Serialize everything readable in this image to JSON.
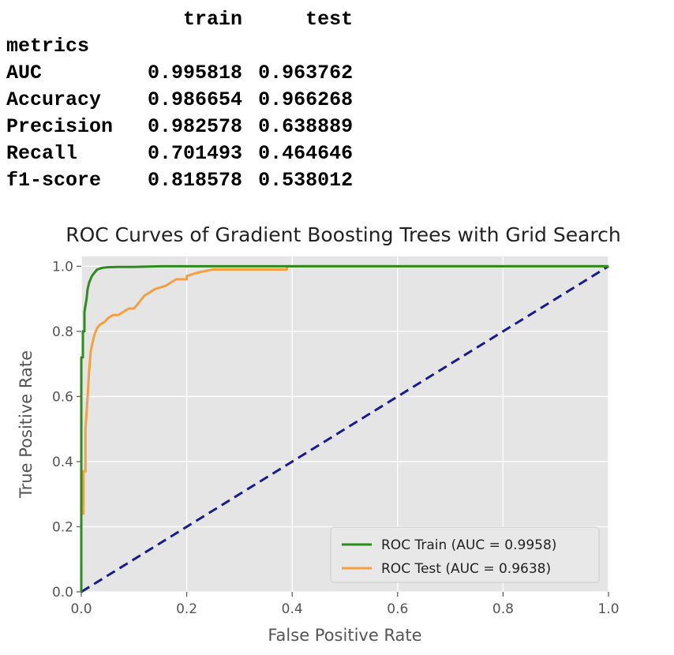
{
  "metrics_table": {
    "index_label": "metrics",
    "columns": [
      "train",
      "test"
    ],
    "rows": [
      {
        "metric": "AUC",
        "train": "0.995818",
        "test": "0.963762"
      },
      {
        "metric": "Accuracy",
        "train": "0.986654",
        "test": "0.966268"
      },
      {
        "metric": "Precision",
        "train": "0.982578",
        "test": "0.638889"
      },
      {
        "metric": "Recall",
        "train": "0.701493",
        "test": "0.464646"
      },
      {
        "metric": "f1-score",
        "train": "0.818578",
        "test": "0.538012"
      }
    ]
  },
  "chart_data": {
    "type": "line",
    "title": "ROC Curves of Gradient Boosting Trees with Grid Search",
    "xlabel": "False Positive Rate",
    "ylabel": "True Positive Rate",
    "xlim": [
      0,
      1
    ],
    "ylim": [
      0,
      1.03
    ],
    "xticks": [
      0.0,
      0.2,
      0.4,
      0.6,
      0.8,
      1.0
    ],
    "xtick_labels": [
      "0.0",
      "0.2",
      "0.4",
      "0.6",
      "0.8",
      "1.0"
    ],
    "yticks": [
      0.0,
      0.2,
      0.4,
      0.6,
      0.8,
      1.0
    ],
    "ytick_labels": [
      "0.0",
      "0.2",
      "0.4",
      "0.6",
      "0.8",
      "1.0"
    ],
    "grid": true,
    "legend_position": "lower-right",
    "series": [
      {
        "name": "ROC Train (AUC = 0.9958)",
        "color": "#2e8b1e",
        "style": "solid",
        "x": [
          0,
          0,
          0.003,
          0.003,
          0.006,
          0.006,
          0.01,
          0.012,
          0.015,
          0.02,
          0.025,
          0.03,
          0.04,
          0.05,
          0.07,
          0.1,
          0.15,
          0.2,
          0.4,
          1.0
        ],
        "y": [
          0,
          0.72,
          0.72,
          0.8,
          0.8,
          0.86,
          0.9,
          0.93,
          0.95,
          0.97,
          0.98,
          0.99,
          0.995,
          0.997,
          0.998,
          0.998,
          1.0,
          1.0,
          1.0,
          1.0
        ]
      },
      {
        "name": "ROC Test (AUC = 0.9638)",
        "color": "#f5a040",
        "style": "solid",
        "x": [
          0,
          0,
          0.004,
          0.004,
          0.008,
          0.008,
          0.012,
          0.015,
          0.018,
          0.022,
          0.025,
          0.03,
          0.035,
          0.045,
          0.05,
          0.06,
          0.07,
          0.08,
          0.09,
          0.1,
          0.11,
          0.12,
          0.14,
          0.16,
          0.18,
          0.2,
          0.2,
          0.22,
          0.25,
          0.3,
          0.35,
          0.39,
          0.39,
          1.0
        ],
        "y": [
          0.1,
          0.24,
          0.24,
          0.37,
          0.37,
          0.5,
          0.6,
          0.68,
          0.74,
          0.77,
          0.79,
          0.81,
          0.82,
          0.83,
          0.84,
          0.85,
          0.85,
          0.86,
          0.87,
          0.87,
          0.89,
          0.91,
          0.93,
          0.94,
          0.96,
          0.96,
          0.97,
          0.98,
          0.99,
          0.99,
          0.99,
          0.99,
          1.0,
          1.0
        ]
      },
      {
        "color": "#1a1a8c",
        "style": "dashed",
        "x": [
          0,
          1
        ],
        "y": [
          0,
          1
        ]
      }
    ]
  }
}
